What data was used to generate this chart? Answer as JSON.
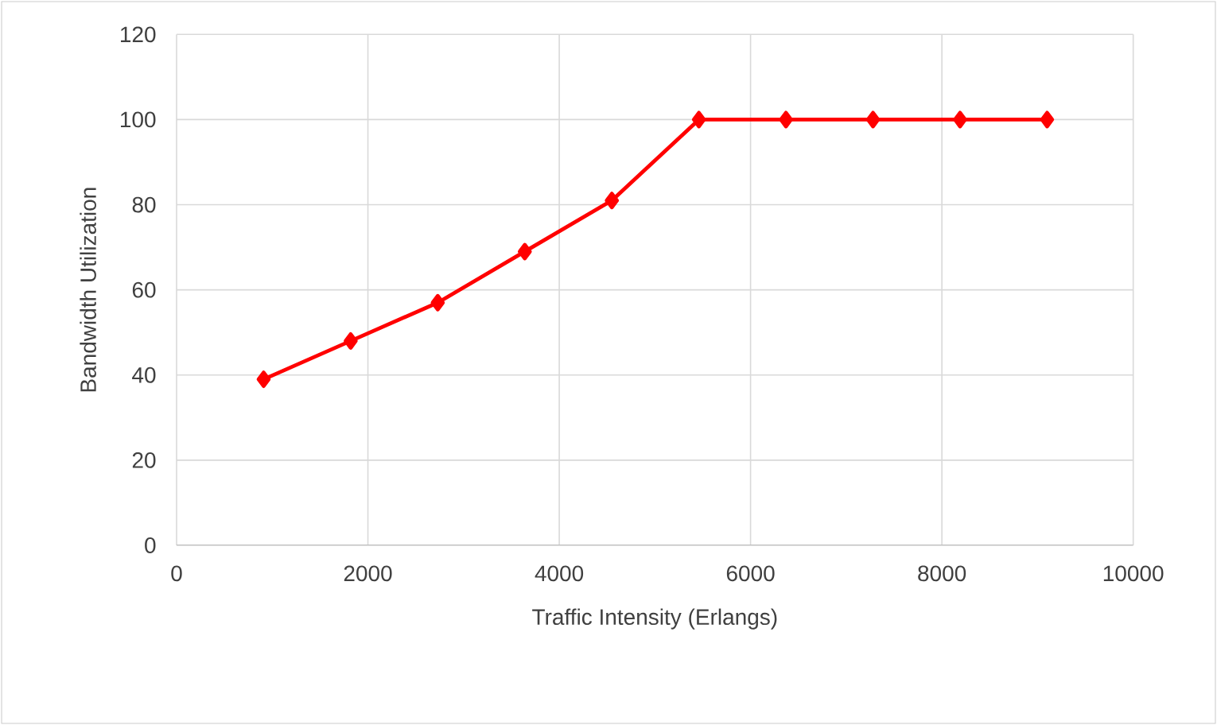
{
  "chart_data": {
    "type": "line",
    "xlabel": "Traffic Intensity (Erlangs)",
    "ylabel": "Bandwidth Utilization",
    "x": [
      910,
      1820,
      2730,
      3640,
      4550,
      5460,
      6370,
      7280,
      8190,
      9100
    ],
    "series": [
      {
        "color": "#ff0000",
        "values": [
          39,
          48,
          57,
          69,
          81,
          100,
          100,
          100,
          100,
          100
        ]
      }
    ],
    "xlim": [
      0,
      10000
    ],
    "ylim": [
      0,
      120
    ],
    "xticks": [
      0,
      2000,
      4000,
      6000,
      8000,
      10000
    ],
    "yticks": [
      0,
      20,
      40,
      60,
      80,
      100,
      120
    ],
    "grid": true,
    "marker": "diamond",
    "line_style": "solid"
  }
}
